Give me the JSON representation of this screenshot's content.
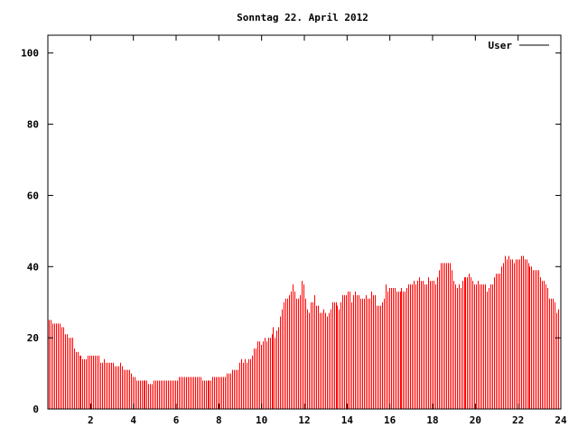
{
  "chart_data": {
    "type": "bar",
    "style": "impulses",
    "title": "Sonntag 22. April 2012",
    "xlabel": "",
    "ylabel": "",
    "xlim": [
      0,
      24
    ],
    "ylim": [
      0,
      105
    ],
    "xticks": [
      2,
      4,
      6,
      8,
      10,
      12,
      14,
      16,
      18,
      20,
      22,
      24
    ],
    "yticks": [
      0,
      20,
      40,
      60,
      80,
      100
    ],
    "grid": false,
    "legend": "top-right",
    "series": [
      {
        "name": "User",
        "color": "#ff0000",
        "legend_color": "#000000",
        "values": [
          25,
          25,
          24,
          24,
          24,
          24,
          24,
          23,
          23,
          21,
          21,
          20,
          20,
          20,
          17,
          16,
          16,
          15,
          15,
          14,
          14,
          14,
          15,
          15,
          15,
          15,
          15,
          15,
          15,
          13,
          13,
          14,
          13,
          13,
          13,
          13,
          13,
          12,
          12,
          12,
          13,
          12,
          11,
          11,
          11,
          11,
          10,
          9,
          9,
          8,
          8,
          8,
          8,
          8,
          8,
          8,
          7,
          7,
          7,
          8,
          8,
          8,
          8,
          8,
          8,
          8,
          8,
          8,
          8,
          8,
          8,
          8,
          8,
          9,
          9,
          9,
          9,
          9,
          9,
          9,
          9,
          9,
          9,
          9,
          9,
          9,
          8,
          8,
          8,
          8,
          8,
          8,
          9,
          9,
          9,
          9,
          9,
          9,
          9,
          9,
          10,
          10,
          10,
          11,
          11,
          11,
          11,
          13,
          14,
          13,
          14,
          13,
          14,
          14,
          15,
          17,
          17,
          19,
          19,
          18,
          19,
          20,
          19,
          20,
          20,
          21,
          23,
          20,
          22,
          23,
          26,
          28,
          30,
          31,
          31,
          32,
          33,
          35,
          33,
          31,
          31,
          32,
          36,
          35,
          31,
          28,
          27,
          30,
          30,
          32,
          29,
          29,
          27,
          27,
          28,
          27,
          26,
          27,
          28,
          30,
          30,
          30,
          29,
          28,
          30,
          32,
          32,
          32,
          33,
          33,
          30,
          32,
          33,
          32,
          32,
          31,
          31,
          31,
          32,
          31,
          31,
          33,
          32,
          32,
          29,
          29,
          29,
          30,
          31,
          35,
          33,
          34,
          34,
          34,
          34,
          33,
          33,
          33,
          34,
          33,
          33,
          34,
          35,
          35,
          35,
          36,
          35,
          36,
          37,
          36,
          36,
          35,
          35,
          37,
          36,
          36,
          36,
          35,
          37,
          39,
          41,
          41,
          41,
          41,
          41,
          41,
          39,
          36,
          35,
          34,
          35,
          34,
          36,
          37,
          37,
          37,
          38,
          37,
          36,
          35,
          35,
          36,
          35,
          35,
          35,
          35,
          33,
          34,
          35,
          35,
          37,
          38,
          38,
          38,
          40,
          41,
          43,
          42,
          43,
          42,
          42,
          41,
          42,
          42,
          42,
          43,
          43,
          42,
          42,
          41,
          40,
          40,
          39,
          39,
          39,
          39,
          37,
          36,
          36,
          35,
          34,
          31,
          31,
          31,
          30,
          27,
          28
        ]
      }
    ]
  }
}
